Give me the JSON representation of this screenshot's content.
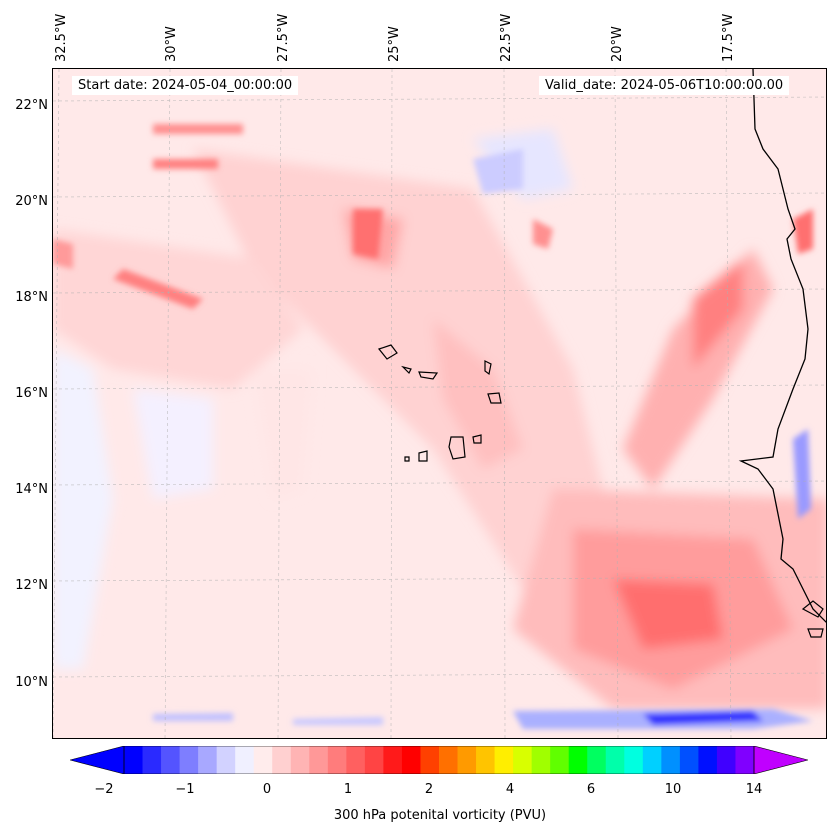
{
  "map": {
    "start_date": "Start date: 2024-05-04_00:00:00",
    "valid_date": "Valid_date: 2024-05-06T10:00:00.00",
    "variable": "300 hPa potential vorticity",
    "lon_labels": [
      "32.5°W",
      "30°W",
      "27.5°W",
      "25°W",
      "22.5°W",
      "20°W",
      "17.5°W"
    ],
    "lat_labels": [
      "22°N",
      "20°N",
      "18°N",
      "16°N",
      "14°N",
      "12°N",
      "10°N"
    ],
    "gridlines": true,
    "region": "Cape Verde and West African coast"
  },
  "colorbar": {
    "label": "300 hPa potenital vorticity (PVU)",
    "ticks": [
      "−2",
      "−1",
      "0",
      "1",
      "2",
      "4",
      "6",
      "10",
      "14"
    ],
    "colors": [
      "#0000ff",
      "#2a2aff",
      "#5454ff",
      "#7e7eff",
      "#a8a8ff",
      "#d2d2ff",
      "#f0f0ff",
      "#ffecec",
      "#ffd0d0",
      "#ffb4b4",
      "#ff9898",
      "#ff7c7c",
      "#ff6060",
      "#ff4444",
      "#ff1a1a",
      "#ff0000",
      "#ff4000",
      "#ff7000",
      "#ff9a00",
      "#ffc400",
      "#ffee00",
      "#d8ff00",
      "#a0ff00",
      "#60ff00",
      "#00ff00",
      "#00ff60",
      "#00ffaa",
      "#00ffe0",
      "#00d0ff",
      "#0090ff",
      "#0050ff",
      "#0010ff",
      "#4000ff",
      "#8000ff"
    ],
    "extend_min": "#0000ff",
    "extend_max": "#c000ff"
  }
}
